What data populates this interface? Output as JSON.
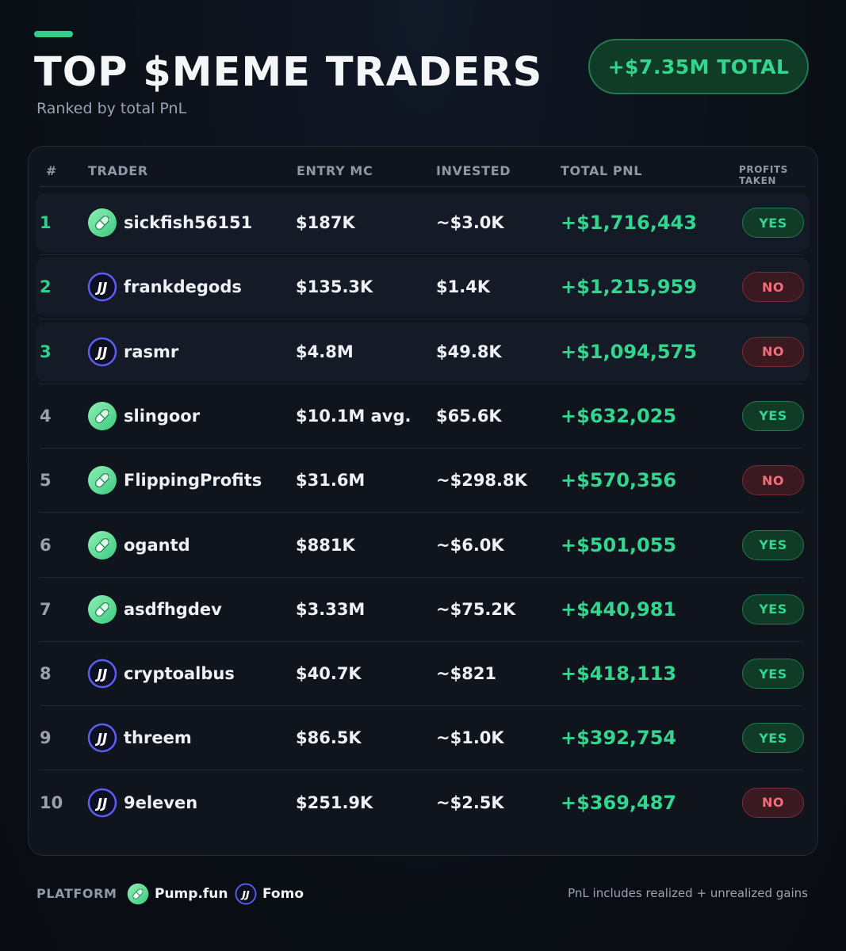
{
  "header": {
    "title": "TOP $MEME TRADERS",
    "subtitle": "Ranked by total PnL",
    "total_label": "+$7.35M TOTAL"
  },
  "table": {
    "columns": [
      "#",
      "TRADER",
      "ENTRY MC",
      "INVESTED",
      "TOTAL PNL",
      "PROFITS TAKEN"
    ],
    "rows": [
      {
        "rank": "1",
        "platform": "pumpfun",
        "trader": "sickfish56151",
        "entry_mc": "$187K",
        "invested": "~$3.0K",
        "total_pnl": "+$1,716,443",
        "profits_taken": "YES"
      },
      {
        "rank": "2",
        "platform": "fomo",
        "trader": "frankdegods",
        "entry_mc": "$135.3K",
        "invested": "$1.4K",
        "total_pnl": "+$1,215,959",
        "profits_taken": "NO"
      },
      {
        "rank": "3",
        "platform": "fomo",
        "trader": "rasmr",
        "entry_mc": "$4.8M",
        "invested": "$49.8K",
        "total_pnl": "+$1,094,575",
        "profits_taken": "NO"
      },
      {
        "rank": "4",
        "platform": "pumpfun",
        "trader": "slingoor",
        "entry_mc": "$10.1M avg.",
        "invested": "$65.6K",
        "total_pnl": "+$632,025",
        "profits_taken": "YES"
      },
      {
        "rank": "5",
        "platform": "pumpfun",
        "trader": "FlippingProfits",
        "entry_mc": "$31.6M",
        "invested": "~$298.8K",
        "total_pnl": "+$570,356",
        "profits_taken": "NO"
      },
      {
        "rank": "6",
        "platform": "pumpfun",
        "trader": "ogantd",
        "entry_mc": "$881K",
        "invested": "~$6.0K",
        "total_pnl": "+$501,055",
        "profits_taken": "YES"
      },
      {
        "rank": "7",
        "platform": "pumpfun",
        "trader": "asdfhgdev",
        "entry_mc": "$3.33M",
        "invested": "~$75.2K",
        "total_pnl": "+$440,981",
        "profits_taken": "YES"
      },
      {
        "rank": "8",
        "platform": "fomo",
        "trader": "cryptoalbus",
        "entry_mc": "$40.7K",
        "invested": "~$821",
        "total_pnl": "+$418,113",
        "profits_taken": "YES"
      },
      {
        "rank": "9",
        "platform": "fomo",
        "trader": "threem",
        "entry_mc": "$86.5K",
        "invested": "~$1.0K",
        "total_pnl": "+$392,754",
        "profits_taken": "YES"
      },
      {
        "rank": "10",
        "platform": "fomo",
        "trader": "9eleven",
        "entry_mc": "$251.9K",
        "invested": "~$2.5K",
        "total_pnl": "+$369,487",
        "profits_taken": "NO"
      }
    ]
  },
  "footer": {
    "platform_label": "PLATFORM",
    "legend": [
      {
        "platform": "pumpfun",
        "label": "Pump.fun"
      },
      {
        "platform": "fomo",
        "label": "Fomo"
      }
    ],
    "note": "PnL includes realized + unrealized gains"
  },
  "icons": {
    "pumpfun": "pill-icon",
    "fomo": "fomo-logo-icon"
  },
  "colors": {
    "accent_green": "#34d58e",
    "negative_red": "#f0707a",
    "background": "#0b0f16",
    "panel": "#0f141d",
    "fomo_ring": "#5b5ef5"
  }
}
